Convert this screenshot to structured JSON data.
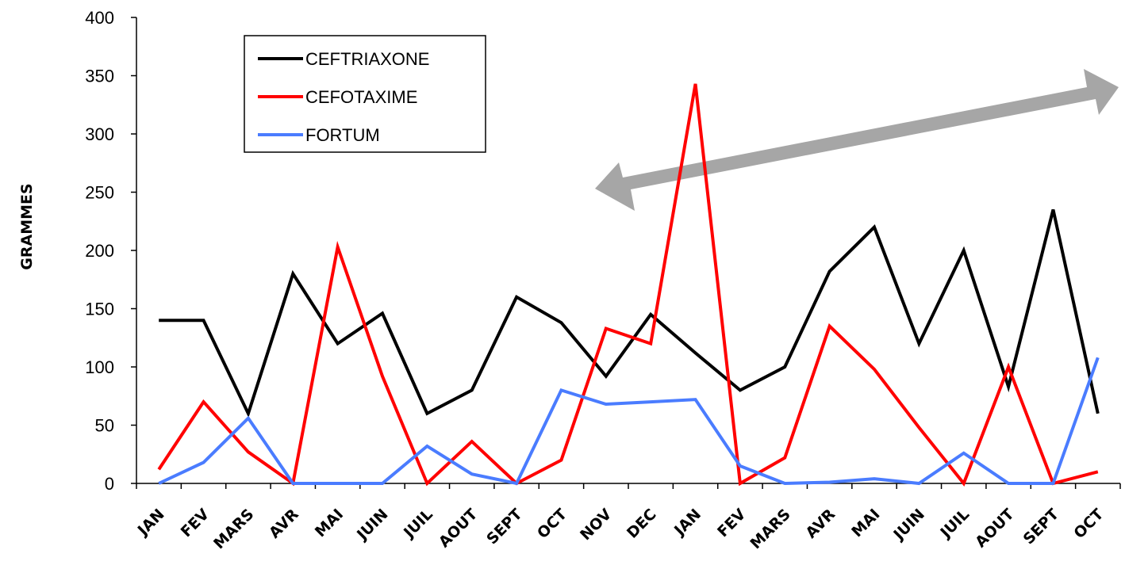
{
  "chart_data": {
    "type": "line",
    "y_label": "GRAMMES",
    "categories": [
      "JAN",
      "FEV",
      "MARS",
      "AVR",
      "MAI",
      "JUIN",
      "JUIL",
      "AOUT",
      "SEPT",
      "OCT",
      "NOV",
      "DEC",
      "JAN",
      "FEV",
      "MARS",
      "AVR",
      "MAI",
      "JUIN",
      "JUIL",
      "AOUT",
      "SEPT",
      "OCT"
    ],
    "series": [
      {
        "name": "CEFTRIAXONE",
        "color": "#000000",
        "values": [
          140,
          140,
          60,
          180,
          120,
          146,
          60,
          80,
          160,
          138,
          92,
          145,
          112,
          80,
          100,
          182,
          220,
          120,
          200,
          83,
          235,
          60
        ]
      },
      {
        "name": "CEFOTAXIME",
        "color": "#ff0000",
        "values": [
          12,
          70,
          27,
          0,
          203,
          92,
          0,
          36,
          0,
          20,
          133,
          120,
          343,
          0,
          22,
          135,
          98,
          48,
          0,
          100,
          0,
          10
        ]
      },
      {
        "name": "FORTUM",
        "color": "#4a7cff",
        "values": [
          0,
          18,
          56,
          0,
          0,
          0,
          32,
          8,
          0,
          80,
          68,
          70,
          72,
          15,
          0,
          1,
          4,
          0,
          26,
          0,
          0,
          108
        ]
      }
    ],
    "ylim": [
      0,
      400
    ],
    "yticks": [
      0,
      50,
      100,
      150,
      200,
      250,
      300,
      350,
      400
    ],
    "legend": "top-left"
  }
}
